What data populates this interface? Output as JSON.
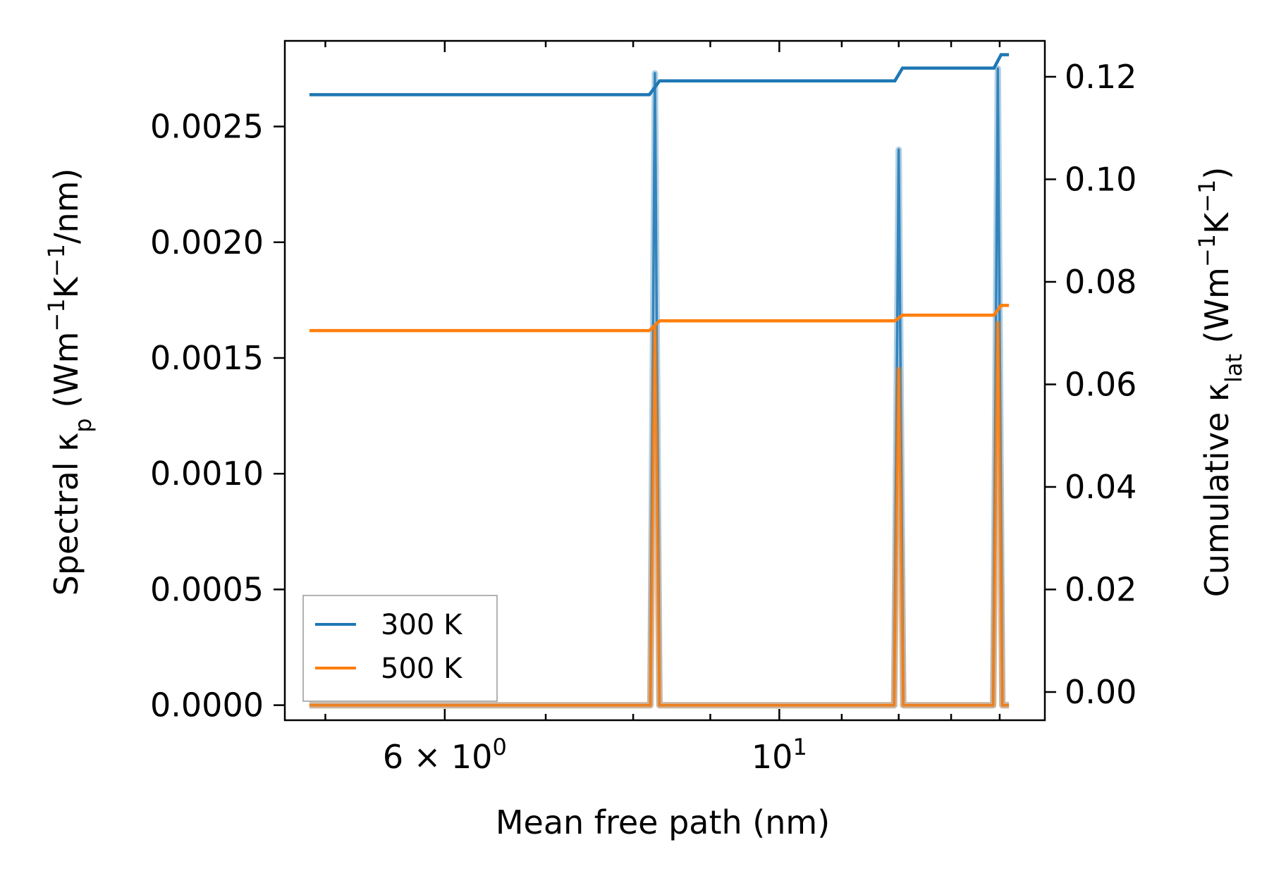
{
  "chart_data": {
    "type": "line",
    "xlabel": "Mean free path (nm)",
    "ylabel_left": "Spectral κp (Wm−1K−1/nm)",
    "ylabel_right": "Cumulative κlat (Wm−1K−1)",
    "xscale": "log",
    "xlim": [
      4.7,
      15.0
    ],
    "ylim_left": [
      -6.5e-05,
      0.00287
    ],
    "ylim_right": [
      -0.0055,
      0.127
    ],
    "x_ticks": [
      {
        "value": 6,
        "label_base": "6 × 10",
        "label_exp": "0"
      },
      {
        "value": 10,
        "label_base": "10",
        "label_exp": "1"
      }
    ],
    "y_left_ticks": [
      "0.0000",
      "0.0005",
      "0.0010",
      "0.0015",
      "0.0020",
      "0.0025"
    ],
    "y_right_ticks": [
      "0.00",
      "0.02",
      "0.04",
      "0.06",
      "0.08",
      "0.10",
      "0.12"
    ],
    "legend": {
      "placement": "lower-left",
      "entries": [
        "300 K",
        "500 K"
      ]
    },
    "colors": {
      "300K": "#1f77b4",
      "500K": "#ff7f0e"
    },
    "spectral": [
      {
        "name": "300 K",
        "peaks": [
          [
            8.27,
            0.00273
          ],
          [
            12.0,
            0.0024
          ],
          [
            13.96,
            0.00275
          ]
        ]
      },
      {
        "name": "500 K",
        "peaks": [
          [
            8.27,
            0.00163
          ],
          [
            12.0,
            0.00145
          ],
          [
            13.96,
            0.00165
          ]
        ]
      }
    ],
    "cumulative": [
      {
        "name": "300 K",
        "x": [
          4.88,
          8.2,
          8.33,
          11.93,
          12.07,
          13.88,
          14.03,
          14.2
        ],
        "y": [
          0.1165,
          0.1165,
          0.1192,
          0.1192,
          0.1217,
          0.1217,
          0.1243,
          0.1243
        ]
      },
      {
        "name": "500 K",
        "x": [
          4.88,
          8.2,
          8.33,
          11.93,
          12.07,
          13.88,
          14.03,
          14.2
        ],
        "y": [
          0.0705,
          0.0705,
          0.0724,
          0.0724,
          0.0735,
          0.0735,
          0.0754,
          0.0754
        ]
      }
    ]
  }
}
